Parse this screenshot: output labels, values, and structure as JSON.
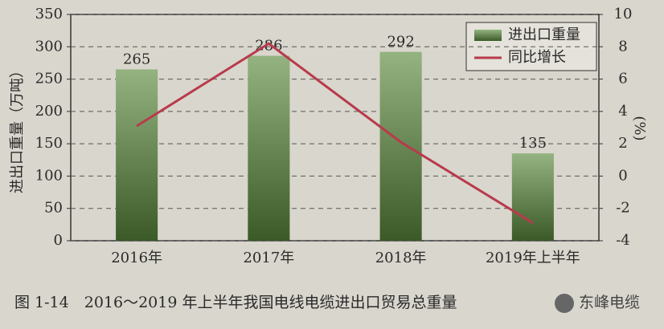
{
  "chart_data": {
    "type": "bar",
    "categories": [
      "2016年",
      "2017年",
      "2018年",
      "2019年上半年"
    ],
    "series": [
      {
        "name": "进出口重量",
        "type": "bar",
        "color": "#5a8a3c",
        "values": [
          265,
          286,
          292,
          135
        ]
      },
      {
        "name": "同比增长",
        "type": "line",
        "axis": "y2",
        "color": "#b83a4b",
        "values": [
          3.1,
          8.2,
          2.1,
          -2.9
        ]
      }
    ],
    "ylim": [
      0,
      350
    ],
    "yticks": [
      0,
      50,
      100,
      150,
      200,
      250,
      300,
      350
    ],
    "y2lim": [
      -4,
      10
    ],
    "y2ticks": [
      -4,
      -2,
      0,
      2,
      4,
      6,
      8,
      10
    ],
    "y_label": "进出口重量（万吨）",
    "y2_label": "(%)",
    "grid": true,
    "legend": "upper right",
    "caption": "图 1-14　2016～2019 年上半年我国电线电缆进出口贸易总重量"
  },
  "watermark": "东峰电缆"
}
